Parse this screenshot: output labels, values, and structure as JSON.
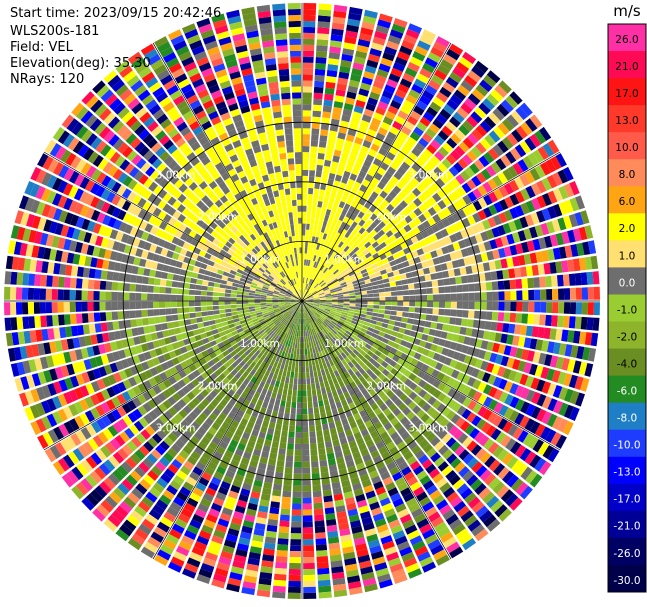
{
  "header": {
    "start_time": "Start time: 2023/09/15 20:42:46",
    "site": "WLS200s-181",
    "field": "Field: VEL",
    "elevation": "Elevation(deg): 35.30",
    "nrays": "NRays: 120"
  },
  "range_label_text": "km",
  "colorbar": {
    "unit": "m/s",
    "levels": [
      {
        "label": "26.0",
        "color": "#ff2fa5"
      },
      {
        "label": "21.0",
        "color": "#ff0a55"
      },
      {
        "label": "17.0",
        "color": "#ff1414"
      },
      {
        "label": "13.0",
        "color": "#ff3a2a"
      },
      {
        "label": "10.0",
        "color": "#ff5a4a"
      },
      {
        "label": "8.0",
        "color": "#ff8a5a"
      },
      {
        "label": "6.0",
        "color": "#ffa514"
      },
      {
        "label": "2.0",
        "color": "#ffff00"
      },
      {
        "label": "1.0",
        "color": "#ffe070"
      },
      {
        "label": "0.0",
        "color": "#6e6e6e"
      },
      {
        "label": "-1.0",
        "color": "#9acd32"
      },
      {
        "label": "-2.0",
        "color": "#8db42a"
      },
      {
        "label": "-4.0",
        "color": "#6b8e23"
      },
      {
        "label": "-6.0",
        "color": "#228b22"
      },
      {
        "label": "-8.0",
        "color": "#1e7fc6"
      },
      {
        "label": "-10.0",
        "color": "#1e3cff"
      },
      {
        "label": "-13.0",
        "color": "#0000ff"
      },
      {
        "label": "-17.0",
        "color": "#0000c8"
      },
      {
        "label": "-21.0",
        "color": "#000096"
      },
      {
        "label": "-26.0",
        "color": "#000064"
      },
      {
        "label": "-30.0",
        "color": "#00004a"
      }
    ]
  },
  "chart_data": {
    "type": "heatmap",
    "projection": "polar PPI scan",
    "field": "VEL",
    "units": "m/s",
    "nrays": 120,
    "rings_km": [
      1.0,
      2.0,
      3.0
    ],
    "ring_labels": [
      "1.00km",
      "2.00km",
      "3.00km"
    ],
    "valid_range_km": 3.3,
    "max_range_km": 5.0,
    "pattern": "Positive (yellow/orange, 1–8 m/s) velocities toward the north, negative (green, -1 to -4 m/s) toward the south, noisy random colors beyond ~3.3 km"
  }
}
